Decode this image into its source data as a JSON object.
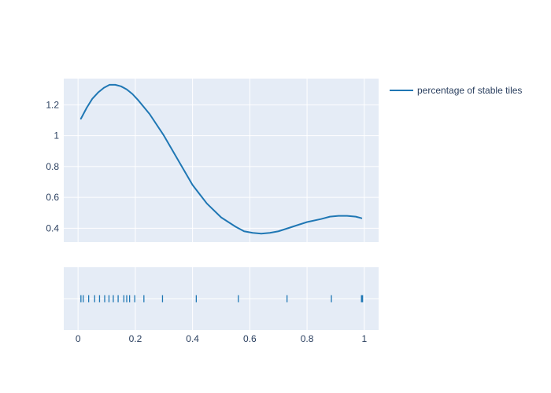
{
  "chart_data": {
    "type": "line",
    "title": "",
    "xlabel": "",
    "ylabel": "",
    "grid": true,
    "legend_position": "top-right",
    "colors": {
      "plot_background": "#E5ECF6",
      "grid": "#ffffff",
      "line": "#1F77B4",
      "text": "#2a3f5f",
      "page_background": "#ffffff"
    },
    "density": {
      "xlim": [
        -0.05,
        1.05
      ],
      "ylim": [
        0.31,
        1.37
      ],
      "yticks": [
        0.4,
        0.6,
        0.8,
        1.0,
        1.2
      ],
      "ytick_labels": [
        "0.4",
        "0.6",
        "0.8",
        "1",
        "1.2"
      ],
      "series": [
        {
          "name": "percentage of stable tiles",
          "x": [
            0.01,
            0.03,
            0.05,
            0.07,
            0.09,
            0.11,
            0.13,
            0.15,
            0.17,
            0.19,
            0.21,
            0.25,
            0.3,
            0.35,
            0.4,
            0.45,
            0.5,
            0.55,
            0.58,
            0.61,
            0.64,
            0.67,
            0.7,
            0.75,
            0.8,
            0.85,
            0.88,
            0.91,
            0.94,
            0.97,
            0.99
          ],
          "y": [
            1.11,
            1.18,
            1.24,
            1.28,
            1.31,
            1.33,
            1.33,
            1.32,
            1.3,
            1.27,
            1.23,
            1.14,
            1.0,
            0.84,
            0.68,
            0.56,
            0.47,
            0.41,
            0.38,
            0.37,
            0.365,
            0.37,
            0.38,
            0.41,
            0.44,
            0.46,
            0.475,
            0.48,
            0.48,
            0.475,
            0.465
          ]
        }
      ]
    },
    "rug": {
      "x": [
        0.01,
        0.018,
        0.037,
        0.058,
        0.075,
        0.093,
        0.108,
        0.123,
        0.14,
        0.16,
        0.17,
        0.18,
        0.198,
        0.23,
        0.295,
        0.413,
        0.56,
        0.73,
        0.885,
        0.99,
        0.992,
        0.994
      ]
    },
    "xaxis": {
      "xticks": [
        0,
        0.2,
        0.4,
        0.6,
        0.8,
        1.0
      ],
      "xtick_labels": [
        "0",
        "0.2",
        "0.4",
        "0.6",
        "0.8",
        "1"
      ]
    },
    "legend": [
      {
        "name": "percentage of stable tiles",
        "color": "#1F77B4"
      }
    ]
  }
}
